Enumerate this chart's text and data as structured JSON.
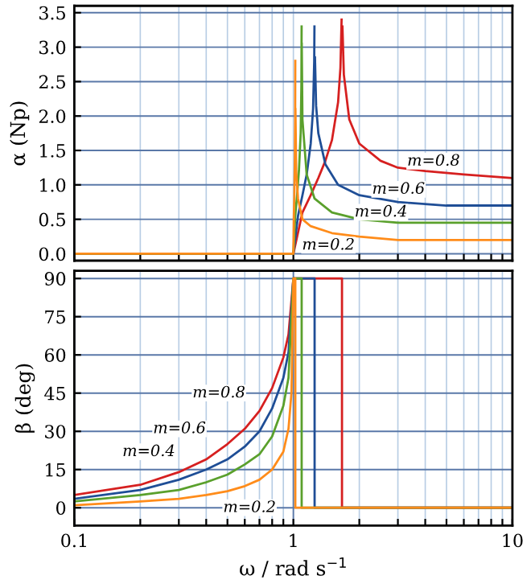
{
  "chart_data": [
    {
      "type": "line",
      "ylabel": "α (Np)",
      "log": "x",
      "grid": true,
      "tick_labels": "y",
      "marker": "none",
      "line_style": "solid",
      "xlim": [
        0.1,
        10
      ],
      "xticks": [
        {
          "value": 0.1,
          "label": null
        },
        {
          "value": 0.2,
          "label": null
        },
        {
          "value": 0.3,
          "label": null
        },
        {
          "value": 0.4,
          "label": null
        },
        {
          "value": 0.5,
          "label": null
        },
        {
          "value": 0.6,
          "label": null
        },
        {
          "value": 0.7,
          "label": null
        },
        {
          "value": 0.8,
          "label": null
        },
        {
          "value": 0.9,
          "label": null
        },
        {
          "value": 1,
          "label": null
        },
        {
          "value": 2,
          "label": null
        },
        {
          "value": 3,
          "label": null
        },
        {
          "value": 4,
          "label": null
        },
        {
          "value": 5,
          "label": null
        },
        {
          "value": 6,
          "label": null
        },
        {
          "value": 7,
          "label": null
        },
        {
          "value": 8,
          "label": null
        },
        {
          "value": 9,
          "label": null
        },
        {
          "value": 10,
          "label": null
        }
      ],
      "ylim": [
        -0.1,
        3.6
      ],
      "yticks": [
        {
          "value": 0,
          "label": "0.0"
        },
        {
          "value": 0.5,
          "label": "0.5"
        },
        {
          "value": 1,
          "label": "1.0"
        },
        {
          "value": 1.5,
          "label": "1.5"
        },
        {
          "value": 2,
          "label": "2.0"
        },
        {
          "value": 2.5,
          "label": "2.5"
        },
        {
          "value": 3,
          "label": "3.0"
        },
        {
          "value": 3.5,
          "label": "3.5"
        }
      ],
      "series": [
        {
          "color": "#d62020",
          "x": [
            0.1,
            1.0,
            1.1,
            1.2,
            1.3,
            1.4,
            1.5,
            1.6,
            1.64,
            1.66,
            1.667,
            1.675,
            1.7,
            1.8,
            2.0,
            2.5,
            3,
            4,
            6,
            10
          ],
          "values": [
            0,
            0,
            0.6,
            0.85,
            1.1,
            1.35,
            1.65,
            2.2,
            2.7,
            3.4,
            null,
            3.3,
            2.6,
            1.95,
            1.6,
            1.35,
            1.25,
            1.2,
            1.15,
            1.1
          ]
        },
        {
          "color": "#1f4e96",
          "x": [
            0.1,
            1.0,
            1.05,
            1.1,
            1.15,
            1.2,
            1.23,
            1.245,
            1.248,
            1.25,
            1.255,
            1.27,
            1.3,
            1.4,
            1.6,
            2,
            3,
            5,
            10
          ],
          "values": [
            0,
            0,
            0.55,
            0.85,
            1.15,
            1.6,
            2.1,
            2.8,
            3.3,
            null,
            2.85,
            2.15,
            1.75,
            1.3,
            1.0,
            0.85,
            0.75,
            0.7,
            0.7
          ]
        },
        {
          "color": "#5aa02c",
          "x": [
            0.1,
            1.0,
            1.02,
            1.04,
            1.06,
            1.08,
            1.088,
            1.0905,
            1.091,
            1.092,
            1.1,
            1.15,
            1.25,
            1.5,
            2,
            3,
            5,
            10
          ],
          "values": [
            0,
            0,
            0.55,
            0.85,
            1.2,
            1.75,
            2.45,
            3.3,
            null,
            3.05,
            1.95,
            1.15,
            0.8,
            0.6,
            0.5,
            0.45,
            0.45,
            0.45
          ]
        },
        {
          "color": "#ff8c1a",
          "x": [
            0.1,
            1.0,
            1.005,
            1.01,
            1.015,
            1.019,
            1.0203,
            1.0206,
            1.022,
            1.03,
            1.05,
            1.1,
            1.2,
            1.5,
            2,
            3,
            5,
            10
          ],
          "values": [
            0,
            0,
            0.55,
            0.85,
            1.3,
            1.95,
            2.8,
            null,
            2.1,
            1.2,
            0.8,
            0.5,
            0.4,
            0.3,
            0.25,
            0.2,
            0.2,
            0.2
          ]
        }
      ],
      "annotations": [
        "m=0.8",
        "m=0.6",
        "m=0.4",
        "m=0.2"
      ]
    },
    {
      "type": "line",
      "ylabel": "β (deg)",
      "xlabel": "ω / rad s$^{−1}$",
      "log": "x",
      "grid": true,
      "marker": "none",
      "line_style": "solid",
      "xlim": [
        0.1,
        10
      ],
      "xticks": [
        0.1,
        {
          "value": 0.2,
          "label": null
        },
        {
          "value": 0.3,
          "label": null
        },
        {
          "value": 0.4,
          "label": null
        },
        {
          "value": 0.5,
          "label": null
        },
        {
          "value": 0.6,
          "label": null
        },
        {
          "value": 0.7,
          "label": null
        },
        {
          "value": 0.8,
          "label": null
        },
        {
          "value": 0.9,
          "label": null
        },
        1,
        {
          "value": 2,
          "label": null
        },
        {
          "value": 3,
          "label": null
        },
        {
          "value": 4,
          "label": null
        },
        {
          "value": 5,
          "label": null
        },
        {
          "value": 6,
          "label": null
        },
        {
          "value": 7,
          "label": null
        },
        {
          "value": 8,
          "label": null
        },
        {
          "value": 9,
          "label": null
        },
        10
      ],
      "ylim": [
        -7,
        93
      ],
      "yticks": [
        0,
        15,
        30,
        45,
        60,
        75,
        90
      ],
      "series": [
        {
          "color": "#d62020",
          "x": [
            0.1,
            0.2,
            0.3,
            0.4,
            0.5,
            0.6,
            0.7,
            0.8,
            0.9,
            0.95,
            1,
            1.667,
            1.667,
            10
          ],
          "values": [
            5,
            9,
            14,
            19,
            25,
            31,
            38,
            47,
            59,
            68,
            90,
            90,
            0,
            0
          ]
        },
        {
          "color": "#1f4e96",
          "x": [
            0.1,
            0.2,
            0.3,
            0.4,
            0.5,
            0.6,
            0.7,
            0.8,
            0.9,
            0.95,
            1,
            1.25,
            1.25,
            10
          ],
          "values": [
            3.5,
            7,
            11,
            15,
            19,
            24,
            30,
            39,
            51,
            61,
            90,
            90,
            0,
            0
          ]
        },
        {
          "color": "#5aa02c",
          "x": [
            0.1,
            0.2,
            0.3,
            0.4,
            0.5,
            0.6,
            0.7,
            0.8,
            0.9,
            0.95,
            1,
            1.091,
            1.091,
            10
          ],
          "values": [
            2.5,
            5,
            7,
            10,
            13,
            17,
            21,
            28,
            40,
            51,
            90,
            90,
            0,
            0
          ]
        },
        {
          "color": "#ff8c1a",
          "x": [
            0.1,
            0.2,
            0.3,
            0.4,
            0.5,
            0.6,
            0.7,
            0.8,
            0.9,
            0.95,
            0.98,
            1,
            1.0206,
            1.0206,
            10
          ],
          "values": [
            1,
            2.5,
            3.5,
            5,
            6.5,
            8.5,
            11,
            15,
            22,
            31,
            45,
            90,
            90,
            0,
            0
          ]
        }
      ],
      "annotations": [
        "m=0.8",
        "m=0.6",
        "m=0.4",
        "m=0.2"
      ]
    }
  ]
}
